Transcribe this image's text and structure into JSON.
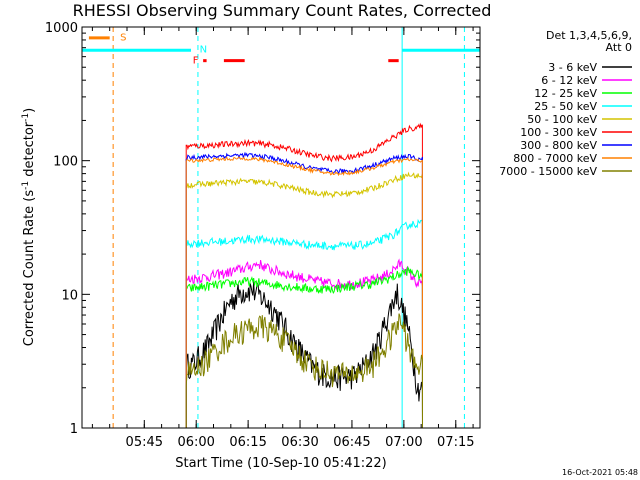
{
  "chart_data": {
    "type": "line",
    "title": "RHESSI Observing Summary Count Rates, Corrected",
    "xlabel": "Start Time (10-Sep-10 05:41:22)",
    "ylabel_main": "Corrected Count Rate (s",
    "ylabel_sup1": "-1",
    "ylabel_mid": " detector",
    "ylabel_sup2": "-1",
    "ylabel_end": ")",
    "y_scale": "log",
    "ylim": [
      1,
      1000
    ],
    "xlim_minutes": [
      -18,
      97
    ],
    "x_ticks": [
      {
        "minutes": 0,
        "label": "05:45"
      },
      {
        "minutes": 15,
        "label": "06:00"
      },
      {
        "minutes": 30,
        "label": "06:15"
      },
      {
        "minutes": 45,
        "label": "06:30"
      },
      {
        "minutes": 60,
        "label": "06:45"
      },
      {
        "minutes": 75,
        "label": "07:00"
      },
      {
        "minutes": 90,
        "label": "07:15"
      }
    ],
    "y_ticks": [
      {
        "value": 1,
        "label": "1"
      },
      {
        "value": 10,
        "label": "10"
      },
      {
        "value": 100,
        "label": "100"
      },
      {
        "value": 1000,
        "label": "1000"
      }
    ],
    "legend_header": [
      "Det 1,3,4,5,6,9,",
      "Att 0"
    ],
    "data_start_min": 12.1,
    "data_end_min": 80.4,
    "series": [
      {
        "name": "3 - 6 keV",
        "color": "#000000",
        "t": [
          14,
          18,
          22,
          25,
          28,
          31,
          34,
          37,
          40,
          43,
          46,
          49,
          52,
          55,
          58,
          61,
          64,
          67,
          70,
          73,
          76,
          79
        ],
        "v": [
          3.0,
          4.0,
          6.5,
          9.0,
          10.5,
          11.0,
          9.5,
          8.0,
          6.0,
          4.5,
          3.5,
          2.8,
          2.5,
          2.4,
          2.4,
          2.5,
          3.0,
          4.0,
          6.5,
          10.5,
          6.0,
          2.0
        ]
      },
      {
        "name": "6 - 12 keV",
        "color": "#ff00ff",
        "t": [
          12.5,
          18,
          24,
          30,
          33,
          36,
          40,
          45,
          50,
          55,
          60,
          65,
          70,
          74,
          76,
          79
        ],
        "v": [
          13,
          13.5,
          14.5,
          16,
          17,
          15.5,
          14.5,
          13.5,
          12.5,
          12,
          12,
          12.5,
          14,
          17,
          15,
          12
        ]
      },
      {
        "name": "12 - 25 keV",
        "color": "#00ff00",
        "t": [
          12.5,
          18,
          24,
          30,
          36,
          42,
          48,
          54,
          60,
          66,
          72,
          76,
          79
        ],
        "v": [
          11,
          11.5,
          12,
          12.5,
          12,
          11.5,
          11,
          11,
          11.5,
          12,
          13.5,
          15,
          14
        ]
      },
      {
        "name": "25 - 50 keV",
        "color": "#00ffff",
        "t": [
          12.5,
          18,
          24,
          30,
          36,
          42,
          48,
          54,
          60,
          66,
          72,
          76,
          79
        ],
        "v": [
          24,
          24.5,
          25,
          26,
          25.5,
          24.5,
          23.5,
          23,
          23,
          24,
          28,
          33,
          34
        ]
      },
      {
        "name": "50 - 100 keV",
        "color": "#d4c400",
        "t": [
          12.5,
          18,
          24,
          30,
          36,
          42,
          48,
          54,
          60,
          66,
          72,
          76,
          79
        ],
        "v": [
          66,
          67,
          69,
          70,
          68,
          63,
          58,
          56,
          57,
          62,
          72,
          78,
          77
        ]
      },
      {
        "name": "100 - 300 keV",
        "color": "#ff0000",
        "t": [
          12.5,
          18,
          24,
          30,
          36,
          42,
          48,
          54,
          60,
          66,
          72,
          76,
          79
        ],
        "v": [
          128,
          130,
          133,
          136,
          132,
          122,
          110,
          104,
          106,
          120,
          150,
          172,
          178
        ]
      },
      {
        "name": "300 - 800 keV",
        "color": "#0000ff",
        "t": [
          12.5,
          18,
          24,
          30,
          36,
          42,
          48,
          54,
          60,
          66,
          72,
          76,
          79
        ],
        "v": [
          106,
          107,
          109,
          110,
          106,
          97,
          88,
          83,
          84,
          92,
          104,
          108,
          103
        ]
      },
      {
        "name": "800 - 7000 keV",
        "color": "#ff8000",
        "t": [
          12.5,
          18,
          24,
          30,
          36,
          42,
          48,
          54,
          60,
          66,
          72,
          76,
          79
        ],
        "v": [
          100,
          101,
          103,
          104,
          100,
          92,
          85,
          80,
          81,
          88,
          98,
          102,
          100
        ]
      },
      {
        "name": "7000 - 15000 keV",
        "color": "#808000",
        "t": [
          14,
          18,
          22,
          26,
          30,
          34,
          38,
          42,
          46,
          50,
          54,
          58,
          62,
          66,
          70,
          74,
          78
        ],
        "v": [
          2.6,
          3.2,
          4.2,
          5.0,
          5.6,
          5.8,
          5.2,
          4.2,
          3.3,
          2.8,
          2.6,
          2.5,
          2.6,
          3.0,
          4.2,
          6.5,
          3.0
        ]
      }
    ],
    "markers": [
      {
        "label": "S",
        "color": "#ff8000",
        "kind": "bar",
        "t0": -16,
        "t1": -10,
        "value": 830
      },
      {
        "label": "N",
        "color": "#00ffff",
        "kind": "bar",
        "t0": -18,
        "t1": 13.5,
        "value": 670
      },
      {
        "label": "N",
        "color": "#00ffff",
        "kind": "bar",
        "t0": 74.5,
        "t1": 97,
        "value": 670
      },
      {
        "label": "F",
        "color": "#ff0000",
        "kind": "bar",
        "t0": 17,
        "t1": 18,
        "value": 560
      },
      {
        "label": "F",
        "color": "#ff0000",
        "kind": "bar",
        "t0": 23,
        "t1": 29,
        "value": 560
      },
      {
        "label": "F",
        "color": "#ff0000",
        "kind": "bar",
        "t0": 70.5,
        "t1": 73.5,
        "value": 560
      }
    ],
    "marker_labels": [
      {
        "text": "S",
        "color": "#ff8000",
        "t": -7,
        "value": 850
      },
      {
        "text": "N",
        "color": "#00ffff",
        "t": 16,
        "value": 690
      },
      {
        "text": "F",
        "color": "#ff0000",
        "t": 14,
        "value": 570
      }
    ],
    "vlines": [
      {
        "t": -9,
        "color": "#ff8000",
        "dashed": true
      },
      {
        "t": -18,
        "color": "#00ffff",
        "dashed": false
      },
      {
        "t": 15.5,
        "color": "#00ffff",
        "dashed": true
      },
      {
        "t": 74.5,
        "color": "#00ffff",
        "dashed": false
      },
      {
        "t": 92.5,
        "color": "#00ffff",
        "dashed": true
      }
    ],
    "footer": "16-Oct-2021 05:48"
  }
}
